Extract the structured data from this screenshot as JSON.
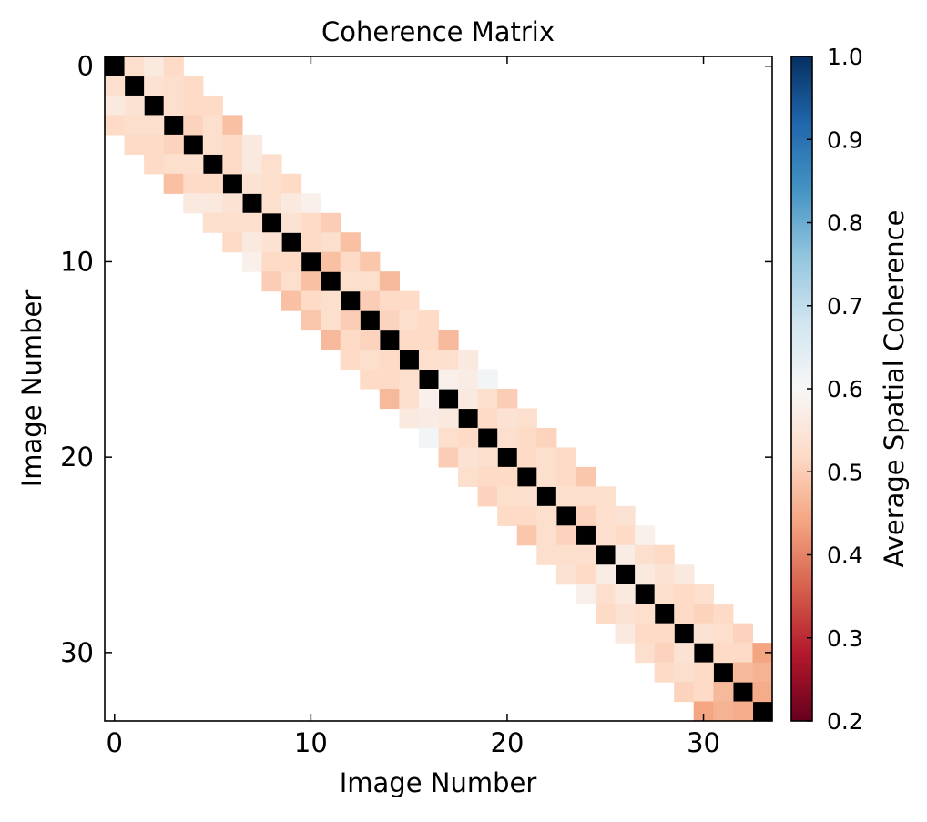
{
  "chart_data": {
    "type": "heatmap",
    "title": "Coherence Matrix",
    "xlabel": "Image Number",
    "ylabel": "Image Number",
    "n": 34,
    "x_ticks": [
      0,
      10,
      20,
      30
    ],
    "y_ticks": [
      0,
      10,
      20,
      30
    ],
    "colorbar": {
      "label": "Average Spatial Coherence",
      "min": 0.2,
      "max": 1.0,
      "ticks": [
        "0.2",
        "0.3",
        "0.4",
        "0.5",
        "0.6",
        "0.7",
        "0.8",
        "0.9",
        "1.0"
      ],
      "colormap": "RdBu"
    },
    "diagonal_color": "#000000",
    "offdiag_values": [
      [
        0.53,
        0.56,
        0.52
      ],
      [
        0.54,
        0.53,
        0.52
      ],
      [
        0.53,
        0.52,
        0.52
      ],
      [
        0.51,
        0.53,
        0.48
      ],
      [
        0.53,
        0.52,
        0.56
      ],
      [
        0.52,
        0.56,
        0.53
      ],
      [
        0.54,
        0.53,
        0.52
      ],
      [
        0.53,
        0.56,
        0.58
      ],
      [
        0.54,
        0.52,
        0.5
      ],
      [
        0.52,
        0.53,
        0.48
      ],
      [
        0.48,
        0.52,
        0.49
      ],
      [
        0.53,
        0.53,
        0.47
      ],
      [
        0.5,
        0.52,
        0.52
      ],
      [
        0.51,
        0.53,
        0.52
      ],
      [
        0.52,
        0.52,
        0.47
      ],
      [
        0.53,
        0.53,
        0.56
      ],
      [
        0.58,
        0.57,
        0.61
      ],
      [
        0.56,
        0.53,
        0.5
      ],
      [
        0.52,
        0.54,
        0.53
      ],
      [
        0.53,
        0.52,
        0.51
      ],
      [
        0.52,
        0.53,
        0.52
      ],
      [
        0.53,
        0.52,
        0.49
      ],
      [
        0.53,
        0.53,
        0.53
      ],
      [
        0.51,
        0.53,
        0.54
      ],
      [
        0.53,
        0.52,
        0.58
      ],
      [
        0.57,
        0.53,
        0.52
      ],
      [
        0.56,
        0.54,
        0.56
      ],
      [
        0.53,
        0.52,
        0.53
      ],
      [
        0.52,
        0.51,
        0.52
      ],
      [
        0.54,
        0.53,
        0.51
      ],
      [
        0.52,
        0.52,
        0.44
      ],
      [
        0.47,
        0.46,
        0.43
      ],
      [
        0.45,
        0.43,
        0.43
      ]
    ]
  }
}
